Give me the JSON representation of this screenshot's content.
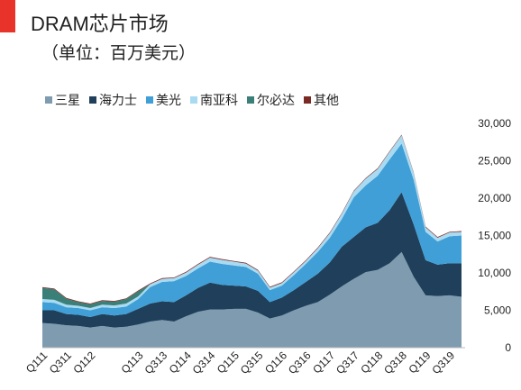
{
  "header": {
    "title": "DRAM芯片市场",
    "subtitle": "（单位：百万美元）"
  },
  "colors": {
    "accent": "#e8332a"
  },
  "chart_data": {
    "type": "area",
    "stacked": true,
    "title": "DRAM芯片市场",
    "subtitle": "（单位：百万美元）",
    "xlabel": "",
    "ylabel": "",
    "ylim": [
      0,
      30000
    ],
    "yticks": [
      "0",
      "5,000",
      "10,000",
      "15,000",
      "20,000",
      "25,000",
      "30,000"
    ],
    "y_axis_position": "right",
    "grid": false,
    "legend_position": "top-left",
    "x": [
      "Q111",
      "Q211",
      "Q311",
      "Q411",
      "Q112",
      "Q212",
      "Q312",
      "Q412",
      "Q113",
      "Q213",
      "Q313",
      "Q413",
      "Q114",
      "Q214",
      "Q314",
      "Q414",
      "Q115",
      "Q215",
      "Q315",
      "Q415",
      "Q116",
      "Q216",
      "Q316",
      "Q416",
      "Q117",
      "Q217",
      "Q317",
      "Q417",
      "Q118",
      "Q218",
      "Q318",
      "Q418",
      "Q119",
      "Q219",
      "Q319",
      "Q419"
    ],
    "x_tick_labels": [
      "Q111",
      "Q311",
      "Q112",
      "Q113",
      "Q313",
      "Q114",
      "Q314",
      "Q115",
      "Q315",
      "Q116",
      "Q316",
      "Q117",
      "Q317",
      "Q118",
      "Q318",
      "Q119",
      "Q319"
    ],
    "series": [
      {
        "name": "三星",
        "color": "#7f9bb0",
        "values": [
          3300,
          3200,
          3000,
          2900,
          2700,
          2900,
          2700,
          2800,
          3100,
          3500,
          3700,
          3500,
          4200,
          4800,
          5100,
          5100,
          5200,
          5200,
          4700,
          3900,
          4300,
          5000,
          5600,
          6100,
          7100,
          8200,
          9200,
          10100,
          10400,
          11300,
          12800,
          9500,
          7000,
          6900,
          7000,
          6800
        ]
      },
      {
        "name": "海力士",
        "color": "#1f3f5b",
        "values": [
          1700,
          1800,
          1500,
          1500,
          1400,
          1600,
          1600,
          1700,
          2100,
          2400,
          2500,
          2600,
          2800,
          3200,
          3600,
          3300,
          3100,
          3000,
          2900,
          2200,
          2400,
          2700,
          3200,
          3800,
          4300,
          5300,
          5600,
          6000,
          6300,
          7100,
          8000,
          7000,
          4700,
          4200,
          4300,
          4500
        ]
      },
      {
        "name": "美光",
        "color": "#3f9fd6",
        "values": [
          1100,
          1000,
          900,
          900,
          900,
          900,
          1000,
          1000,
          1300,
          2200,
          2600,
          2800,
          2600,
          2600,
          2800,
          2800,
          2700,
          2600,
          2300,
          1600,
          1600,
          2000,
          2400,
          2900,
          3300,
          3700,
          5300,
          5600,
          6300,
          6800,
          6500,
          6000,
          3800,
          3100,
          3600,
          3700
        ]
      },
      {
        "name": "南亚科",
        "color": "#a8daf2",
        "values": [
          400,
          400,
          350,
          300,
          300,
          350,
          350,
          400,
          350,
          400,
          400,
          400,
          450,
          500,
          550,
          550,
          500,
          450,
          400,
          350,
          350,
          400,
          400,
          500,
          600,
          700,
          800,
          900,
          900,
          1000,
          1100,
          900,
          600,
          500,
          500,
          500
        ]
      },
      {
        "name": "尔必达",
        "color": "#3a8078",
        "values": [
          1500,
          1400,
          800,
          500,
          500,
          500,
          500,
          600,
          700,
          0,
          0,
          0,
          0,
          0,
          0,
          0,
          0,
          0,
          0,
          0,
          0,
          0,
          0,
          0,
          0,
          0,
          0,
          0,
          0,
          0,
          0,
          0,
          0,
          0,
          0,
          0
        ]
      },
      {
        "name": "其他",
        "color": "#7a2a25",
        "values": [
          100,
          100,
          100,
          100,
          100,
          100,
          100,
          100,
          100,
          100,
          100,
          100,
          100,
          100,
          100,
          100,
          100,
          100,
          100,
          100,
          100,
          100,
          100,
          100,
          100,
          100,
          100,
          100,
          100,
          100,
          100,
          100,
          100,
          100,
          100,
          100
        ]
      }
    ]
  }
}
